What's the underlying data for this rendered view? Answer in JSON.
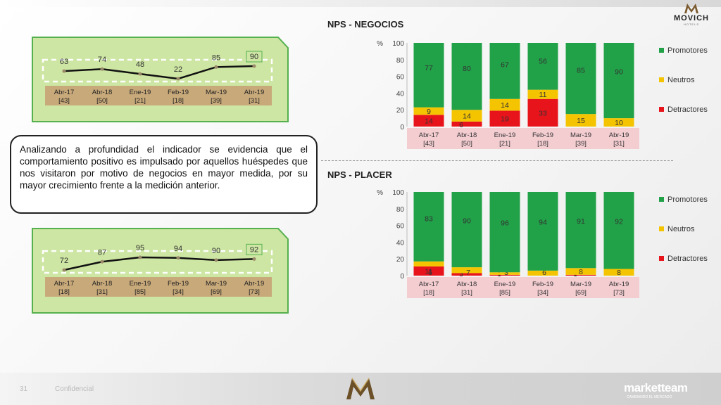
{
  "header": {
    "logo_text": "MOVICH",
    "logo_sub": "HOTELS"
  },
  "sections": {
    "negocios_title": "NPS - NEGOCIOS",
    "placer_title": "NPS - PLACER"
  },
  "callout": {
    "text": "Analizando a profundidad el indicador se evidencia que el comportamiento positivo es impulsado por aquellos huéspedes que nos visitaron por motivo de negocios en mayor medida, por su mayor crecimiento frente a la medición anterior."
  },
  "footer": {
    "page_number": "31",
    "page_text": "Confidencial",
    "brand": "marketteam",
    "brand_sub": "CAMBIANDO EL MERCADO"
  },
  "colors": {
    "promotores": "#21a148",
    "neutros": "#f5c400",
    "detractores": "#e8141b",
    "card_green": "#cde6a3",
    "card_border": "#55b04f",
    "label_band": "#c8a97a",
    "axis_band": "#f4cdd1"
  },
  "chart_data": [
    {
      "id": "negocios-line",
      "type": "line",
      "categories": [
        "Abr-17",
        "Abr-18",
        "Ene-19",
        "Feb-19",
        "Mar-19",
        "Abr-19"
      ],
      "sample_sizes": [
        "[43]",
        "[50]",
        "[21]",
        "[18]",
        "[39]",
        "[31]"
      ],
      "values": [
        63,
        74,
        48,
        22,
        85,
        90
      ],
      "highlight_last": true
    },
    {
      "id": "placer-line",
      "type": "line",
      "categories": [
        "Abr-17",
        "Abr-18",
        "Ene-19",
        "Feb-19",
        "Mar-19",
        "Abr-19"
      ],
      "sample_sizes": [
        "[18]",
        "[31]",
        "[85]",
        "[34]",
        "[69]",
        "[73]"
      ],
      "values": [
        72,
        87,
        95,
        94,
        90,
        92
      ],
      "highlight_last": true
    },
    {
      "id": "negocios-bars",
      "type": "bar",
      "stacked": true,
      "categories": [
        "Abr-17",
        "Abr-18",
        "Ene-19",
        "Feb-19",
        "Mar-19",
        "Abr-19"
      ],
      "sample_sizes": [
        "[43]",
        "[50]",
        "[21]",
        "[18]",
        "[39]",
        "[31]"
      ],
      "ylabel": "%",
      "ylim": [
        0,
        100
      ],
      "yticks": [
        0,
        20,
        40,
        60,
        80,
        100
      ],
      "legend_position": "right",
      "series": [
        {
          "name": "Detractores",
          "values": [
            14,
            6,
            19,
            33,
            0,
            0
          ],
          "labels": [
            "14",
            "6",
            "19",
            "33",
            "",
            ""
          ]
        },
        {
          "name": "Neutros",
          "values": [
            9,
            14,
            14,
            11,
            15,
            10
          ],
          "labels": [
            "9",
            "14",
            "14",
            "11",
            "15",
            "10"
          ]
        },
        {
          "name": "Promotores",
          "values": [
            77,
            80,
            67,
            56,
            85,
            90
          ],
          "labels": [
            "77",
            "80",
            "67",
            "56",
            "85",
            "90"
          ]
        }
      ],
      "legend_order": [
        "Promotores",
        "Neutros",
        "Detractores"
      ]
    },
    {
      "id": "placer-bars",
      "type": "bar",
      "stacked": true,
      "categories": [
        "Abr-17",
        "Abr-18",
        "Ene-19",
        "Feb-19",
        "Mar-19",
        "Abr-19"
      ],
      "sample_sizes": [
        "[18]",
        "[31]",
        "[85]",
        "[34]",
        "[69]",
        "[73]"
      ],
      "ylabel": "%",
      "ylim": [
        0,
        100
      ],
      "yticks": [
        0,
        20,
        40,
        60,
        80,
        100
      ],
      "legend_position": "right",
      "series": [
        {
          "name": "Detractores",
          "values": [
            11,
            3,
            1,
            0,
            1,
            0
          ],
          "labels": [
            "11",
            "3",
            "1",
            "",
            "1",
            ""
          ]
        },
        {
          "name": "Neutros",
          "values": [
            6,
            7,
            3,
            6,
            8,
            8
          ],
          "labels": [
            "6",
            "7",
            "3",
            "6",
            "8",
            "8"
          ]
        },
        {
          "name": "Promotores",
          "values": [
            83,
            90,
            96,
            94,
            91,
            92
          ],
          "labels": [
            "83",
            "90",
            "96",
            "94",
            "91",
            "92"
          ]
        }
      ],
      "legend_order": [
        "Promotores",
        "Neutros",
        "Detractores"
      ]
    }
  ]
}
